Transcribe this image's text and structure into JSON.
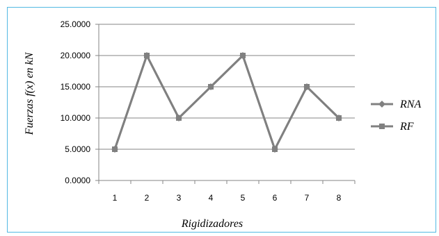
{
  "chart_data": {
    "type": "line",
    "categories": [
      "1",
      "2",
      "3",
      "4",
      "5",
      "6",
      "7",
      "8"
    ],
    "series": [
      {
        "name": "RNA",
        "marker": "diamond",
        "values": [
          5,
          20,
          10,
          15,
          20,
          5,
          15,
          10
        ]
      },
      {
        "name": "RF",
        "marker": "square",
        "values": [
          5,
          20,
          10,
          15,
          20,
          5,
          15,
          10
        ]
      }
    ],
    "title": "",
    "xlabel": "Rigidizadores",
    "ylabel": "Fuerzas f(x) en kN",
    "ylim": [
      0,
      25
    ],
    "yticks": [
      "0.0000",
      "5.0000",
      "10.0000",
      "15.0000",
      "20.0000",
      "25.0000"
    ],
    "grid": true,
    "legend": "right",
    "colors": {
      "line": "#808080",
      "grid": "#868686",
      "frame": "#52b9e3"
    }
  }
}
